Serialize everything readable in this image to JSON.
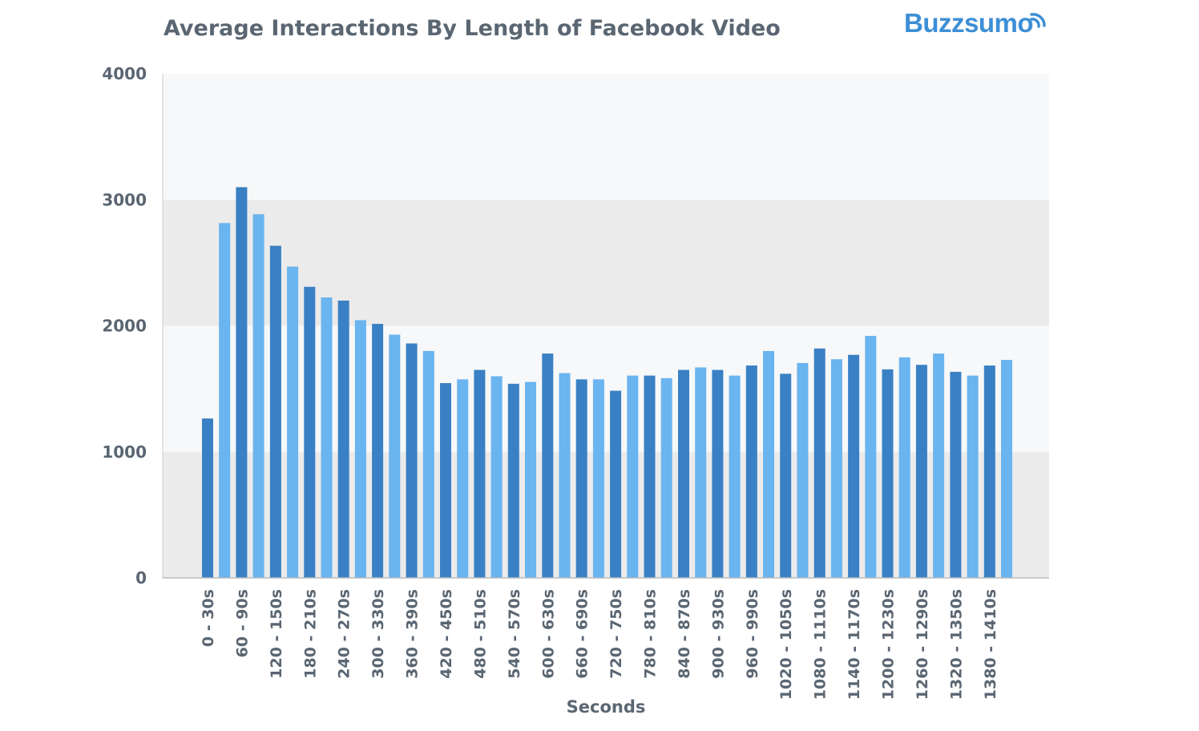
{
  "header": {
    "title": "Average Interactions By Length of Facebook Video",
    "brand": "Buzzsumo"
  },
  "chart_data": {
    "type": "bar",
    "title": "Average Interactions By Length of Facebook Video",
    "xlabel": "Seconds",
    "ylabel": "",
    "ylim": [
      0,
      4000
    ],
    "yticks": [
      "0",
      "1000",
      "2000",
      "3000",
      "4000"
    ],
    "grid": "banded",
    "legend": "none",
    "colors": {
      "dark": "#3a80c4",
      "light": "#6ab4ef",
      "band": "#ebebeb",
      "axis": "#cccccc"
    },
    "categories": [
      "0 - 30s",
      "30 - 60s",
      "60 - 90s",
      "90 - 120s",
      "120 - 150s",
      "150 - 180s",
      "180 - 210s",
      "210 - 240s",
      "240 - 270s",
      "270 - 300s",
      "300 - 330s",
      "330 - 360s",
      "360 - 390s",
      "390 - 420s",
      "420 - 450s",
      "450 - 480s",
      "480 - 510s",
      "510 - 540s",
      "540 - 570s",
      "570 - 600s",
      "600 - 630s",
      "630 - 660s",
      "660 - 690s",
      "690 - 720s",
      "720 - 750s",
      "750 - 780s",
      "780 - 810s",
      "810 - 840s",
      "840 - 870s",
      "870 - 900s",
      "900 - 930s",
      "930 - 960s",
      "960 - 990s",
      "990 - 1020s",
      "1020 - 1050s",
      "1050 - 1080s",
      "1080 - 1110s",
      "1110 - 1140s",
      "1140 - 1170s",
      "1170 - 1200s",
      "1200 - 1230s",
      "1230 - 1260s",
      "1260 - 1290s",
      "1290 - 1320s",
      "1320 - 1350s",
      "1350 - 1380s",
      "1380 - 1410s",
      "1410 - 1440s"
    ],
    "shown_tick_labels": [
      "0 - 30s",
      "60 - 90s",
      "120 - 150s",
      "180 - 210s",
      "240 - 270s",
      "300 - 330s",
      "360 - 390s",
      "420 - 450s",
      "480 - 510s",
      "540 - 570s",
      "600 - 630s",
      "660 - 690s",
      "720 - 750s",
      "780 - 810s",
      "840 - 870s",
      "900 - 930s",
      "960 - 990s",
      "1020 - 1050s",
      "1080 - 1110s",
      "1140 - 1170s",
      "1200 - 1230s",
      "1260 - 1290s",
      "1320 - 1350s",
      "1380 - 1410s"
    ],
    "values": [
      1265,
      2815,
      3100,
      2885,
      2635,
      2470,
      2310,
      2225,
      2200,
      2045,
      2015,
      1930,
      1860,
      1800,
      1545,
      1575,
      1650,
      1600,
      1540,
      1555,
      1780,
      1625,
      1575,
      1575,
      1485,
      1605,
      1605,
      1585,
      1650,
      1670,
      1650,
      1605,
      1685,
      1800,
      1620,
      1705,
      1820,
      1735,
      1770,
      1920,
      1655,
      1750,
      1690,
      1780,
      1635,
      1605,
      1685,
      1730
    ]
  }
}
